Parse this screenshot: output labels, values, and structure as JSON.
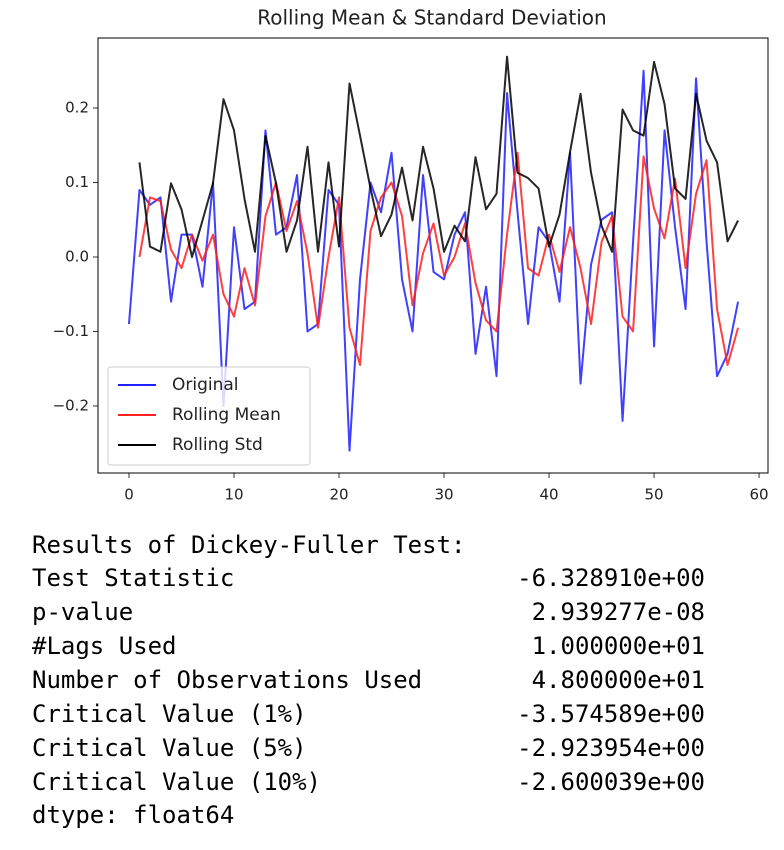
{
  "chart_data": {
    "type": "line",
    "title": "Rolling Mean & Standard Deviation",
    "x": [
      0,
      1,
      2,
      3,
      4,
      5,
      6,
      7,
      8,
      9,
      10,
      11,
      12,
      13,
      14,
      15,
      16,
      17,
      18,
      19,
      20,
      21,
      22,
      23,
      24,
      25,
      26,
      27,
      28,
      29,
      30,
      31,
      32,
      33,
      34,
      35,
      36,
      37,
      38,
      39,
      40,
      41,
      42,
      43,
      44,
      45,
      46,
      47,
      48,
      49,
      50,
      51,
      52,
      53,
      54,
      55,
      56,
      57,
      58
    ],
    "series": [
      {
        "name": "Original",
        "color": "#1f1fff",
        "values": [
          -0.09,
          0.09,
          0.07,
          0.08,
          -0.06,
          0.03,
          0.03,
          -0.04,
          0.1,
          -0.2,
          0.04,
          -0.07,
          -0.06,
          0.17,
          0.03,
          0.04,
          0.11,
          -0.1,
          -0.09,
          0.09,
          0.07,
          -0.26,
          -0.03,
          0.1,
          0.06,
          0.14,
          -0.03,
          -0.1,
          0.11,
          -0.02,
          -0.03,
          0.03,
          0.06,
          -0.13,
          -0.04,
          -0.16,
          0.22,
          0.06,
          -0.09,
          0.04,
          0.02,
          -0.06,
          0.14,
          -0.17,
          -0.01,
          0.05,
          0.06,
          -0.22,
          0.02,
          0.25,
          -0.12,
          0.17,
          0.04,
          -0.07,
          0.24,
          0.02,
          -0.16,
          -0.13,
          -0.06
        ]
      },
      {
        "name": "Rolling Mean",
        "color": "#ff1f1f",
        "values": [
          null,
          0.0,
          0.08,
          0.075,
          0.01,
          -0.015,
          0.03,
          -0.005,
          0.03,
          -0.05,
          -0.08,
          -0.015,
          -0.065,
          0.055,
          0.1,
          0.035,
          0.075,
          0.005,
          -0.095,
          0.0,
          0.08,
          -0.095,
          -0.145,
          0.035,
          0.08,
          0.1,
          0.055,
          -0.065,
          0.005,
          0.045,
          -0.025,
          0.0,
          0.045,
          -0.035,
          -0.085,
          -0.1,
          0.03,
          0.14,
          -0.015,
          -0.025,
          0.03,
          -0.02,
          0.04,
          -0.015,
          -0.09,
          0.02,
          0.055,
          -0.08,
          -0.1,
          0.135,
          0.065,
          0.025,
          0.105,
          -0.015,
          0.085,
          0.13,
          -0.07,
          -0.145,
          -0.095
        ]
      },
      {
        "name": "Rolling Std",
        "color": "#000000",
        "values": [
          null,
          0.127,
          0.014,
          0.007,
          0.099,
          0.064,
          0.0,
          0.049,
          0.099,
          0.212,
          0.17,
          0.078,
          0.007,
          0.163,
          0.099,
          0.007,
          0.049,
          0.148,
          0.007,
          0.127,
          0.014,
          0.233,
          0.163,
          0.092,
          0.028,
          0.057,
          0.12,
          0.049,
          0.148,
          0.092,
          0.007,
          0.042,
          0.021,
          0.134,
          0.064,
          0.085,
          0.269,
          0.113,
          0.106,
          0.092,
          0.014,
          0.057,
          0.141,
          0.219,
          0.113,
          0.042,
          0.007,
          0.198,
          0.17,
          0.163,
          0.262,
          0.205,
          0.092,
          0.078,
          0.219,
          0.156,
          0.127,
          0.021,
          0.049
        ]
      }
    ],
    "xlim": [
      -2.95,
      60.85
    ],
    "ylim": [
      -0.29,
      0.294
    ],
    "xticks": [
      0,
      10,
      20,
      30,
      40,
      50,
      60
    ],
    "yticks": [
      {
        "value": -0.2,
        "label": "−0.2"
      },
      {
        "value": -0.1,
        "label": "−0.1"
      },
      {
        "value": 0,
        "label": "0.0"
      },
      0.1,
      0.2
    ],
    "legend": "lower left"
  },
  "output": {
    "title": "Results of Dickey-Fuller Test:",
    "rows": [
      [
        "Test Statistic",
        "-6.328910e+00"
      ],
      [
        "p-value",
        "2.939277e-08"
      ],
      [
        "#Lags Used",
        "1.000000e+01"
      ],
      [
        "Number of Observations Used",
        "4.800000e+01"
      ],
      [
        "Critical Value (1%)",
        "-3.574589e+00"
      ],
      [
        "Critical Value (5%)",
        "-2.923954e+00"
      ],
      [
        "Critical Value (10%)",
        "-2.600039e+00"
      ]
    ],
    "footer": "dtype: float64"
  }
}
